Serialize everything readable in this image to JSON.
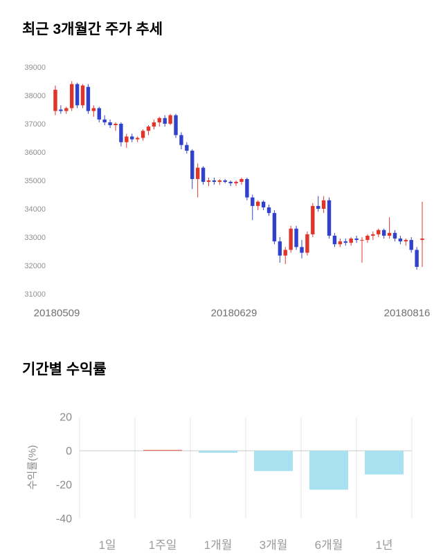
{
  "chart_data": [
    {
      "type": "candlestick",
      "title": "최근 3개월간 주가 추세",
      "ylim": [
        31000,
        39000
      ],
      "yticks": [
        39000,
        38000,
        37000,
        36000,
        35000,
        34000,
        33000,
        32000,
        31000
      ],
      "xtick_labels": [
        "20180509",
        "20180629",
        "20180816"
      ],
      "up_color": "#e1352a",
      "down_color": "#3042cc",
      "candles": [
        [
          37450,
          38350,
          37300,
          38200
        ],
        [
          37500,
          37650,
          37350,
          37450
        ],
        [
          37450,
          37600,
          37350,
          37550
        ],
        [
          37550,
          38500,
          37450,
          38400
        ],
        [
          38400,
          38450,
          37550,
          37650
        ],
        [
          37650,
          38400,
          37550,
          38350
        ],
        [
          38300,
          38400,
          37350,
          37450
        ],
        [
          37450,
          37650,
          37250,
          37550
        ],
        [
          37550,
          37600,
          37050,
          37150
        ],
        [
          37150,
          37300,
          36950,
          37050
        ],
        [
          37050,
          37150,
          36850,
          36950
        ],
        [
          36950,
          37050,
          36750,
          37000
        ],
        [
          37000,
          37050,
          36200,
          36350
        ],
        [
          36350,
          36650,
          36150,
          36550
        ],
        [
          36550,
          36650,
          36350,
          36450
        ],
        [
          36450,
          36550,
          36350,
          36500
        ],
        [
          36500,
          36800,
          36400,
          36750
        ],
        [
          36750,
          36950,
          36600,
          36900
        ],
        [
          36900,
          37150,
          36800,
          37050
        ],
        [
          37050,
          37250,
          36900,
          37200
        ],
        [
          37200,
          37300,
          36900,
          37000
        ],
        [
          37000,
          37350,
          36950,
          37300
        ],
        [
          37300,
          37350,
          36500,
          36600
        ],
        [
          36600,
          36700,
          36100,
          36250
        ],
        [
          36250,
          36350,
          35950,
          36050
        ],
        [
          36050,
          36100,
          34700,
          35050
        ],
        [
          35050,
          35600,
          34400,
          35450
        ],
        [
          35450,
          35500,
          34850,
          34950
        ],
        [
          34950,
          35100,
          34800,
          35000
        ],
        [
          35000,
          35100,
          34850,
          34950
        ],
        [
          34950,
          35050,
          34850,
          35000
        ],
        [
          35000,
          35050,
          34900,
          34950
        ],
        [
          34950,
          35000,
          34800,
          34900
        ],
        [
          34900,
          35000,
          34800,
          34950
        ],
        [
          34950,
          35100,
          34850,
          35050
        ],
        [
          35050,
          35100,
          34300,
          34400
        ],
        [
          34400,
          34500,
          33600,
          34100
        ],
        [
          34100,
          34300,
          33950,
          34250
        ],
        [
          34250,
          34300,
          33950,
          34050
        ],
        [
          34050,
          34150,
          33750,
          33850
        ],
        [
          33850,
          33950,
          32750,
          32850
        ],
        [
          32850,
          33000,
          32100,
          32350
        ],
        [
          32350,
          32650,
          32050,
          32550
        ],
        [
          32550,
          33400,
          32450,
          33300
        ],
        [
          33300,
          33400,
          32550,
          32650
        ],
        [
          32650,
          32900,
          32250,
          32450
        ],
        [
          32450,
          33200,
          32350,
          33100
        ],
        [
          33100,
          34200,
          33000,
          34100
        ],
        [
          34100,
          34450,
          33900,
          34000
        ],
        [
          34000,
          34450,
          33850,
          34300
        ],
        [
          34300,
          34400,
          32950,
          33050
        ],
        [
          33050,
          33150,
          32650,
          32750
        ],
        [
          32750,
          32950,
          32650,
          32850
        ],
        [
          32850,
          32950,
          32700,
          32800
        ],
        [
          32800,
          33000,
          32700,
          32950
        ],
        [
          32950,
          33050,
          32800,
          32900
        ],
        [
          32900,
          33000,
          32100,
          32900
        ],
        [
          32900,
          33100,
          32800,
          33050
        ],
        [
          33050,
          33200,
          32900,
          33100
        ],
        [
          33100,
          33300,
          33000,
          33250
        ],
        [
          33250,
          33300,
          32950,
          33050
        ],
        [
          33050,
          33700,
          32950,
          33150
        ],
        [
          33150,
          33250,
          32850,
          32950
        ],
        [
          32950,
          33050,
          32750,
          32850
        ],
        [
          32850,
          32950,
          32700,
          32900
        ],
        [
          32900,
          33000,
          32450,
          32550
        ],
        [
          32550,
          32650,
          31850,
          31950
        ],
        [
          32900,
          34250,
          31950,
          32950
        ]
      ]
    },
    {
      "type": "bar",
      "title": "기간별 수익률",
      "ylabel": "수익률(%)",
      "categories": [
        "1일",
        "1주일",
        "1개월",
        "3개월",
        "6개월",
        "1년"
      ],
      "values": [
        0.0,
        0.5,
        -1.2,
        -12.0,
        -23.0,
        -14.0
      ],
      "ylim": [
        -40,
        20
      ],
      "yticks": [
        20,
        0,
        -20,
        -40
      ],
      "positive_color": "#e8695d",
      "negative_color": "#a8e1f0",
      "grid_color": "#e4e4e4",
      "zero_line_color": "#c9c9c9"
    }
  ]
}
